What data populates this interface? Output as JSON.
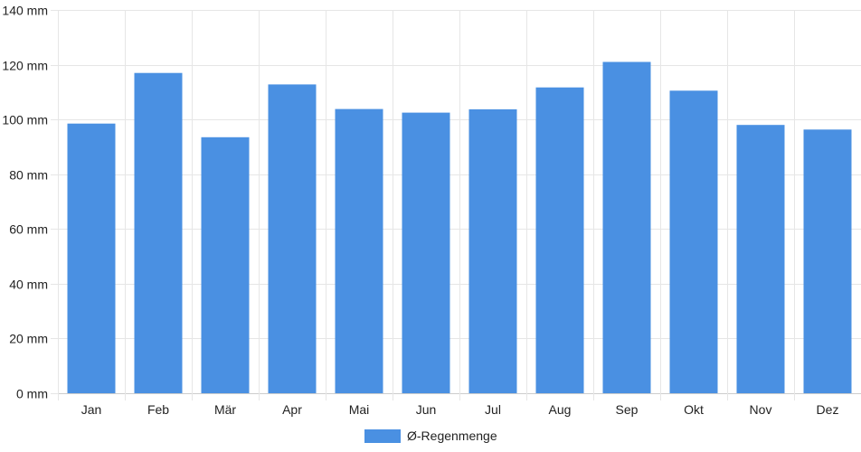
{
  "chart_data": {
    "type": "bar",
    "categories": [
      "Jan",
      "Feb",
      "Mär",
      "Apr",
      "Mai",
      "Jun",
      "Jul",
      "Aug",
      "Sep",
      "Okt",
      "Nov",
      "Dez"
    ],
    "series": [
      {
        "name": "Ø-Regenmenge",
        "values": [
          98.5,
          117,
          93.5,
          112.8,
          103.8,
          102.5,
          103.7,
          111.7,
          121,
          110.5,
          98,
          96.3
        ],
        "color": "#4a90e2"
      }
    ],
    "y_unit": "mm",
    "ylim": [
      0,
      140
    ],
    "y_ticks": [
      0,
      20,
      40,
      60,
      80,
      100,
      120,
      140
    ],
    "grid": true,
    "legend": {
      "position": "bottom-center",
      "label": "Ø-Regenmenge"
    }
  }
}
